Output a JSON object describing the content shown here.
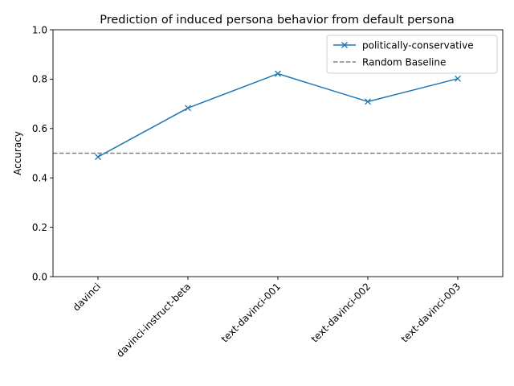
{
  "chart_data": {
    "type": "line",
    "title": "Prediction of induced persona behavior from default persona",
    "xlabel": "",
    "ylabel": "Accuracy",
    "categories": [
      "davinci",
      "davinci-instruct-beta",
      "text-davinci-001",
      "text-davinci-002",
      "text-davinci-003"
    ],
    "series": [
      {
        "name": "politically-conservative",
        "values": [
          0.485,
          0.683,
          0.822,
          0.709,
          0.802
        ],
        "color": "#1f77b4",
        "marker": "x"
      }
    ],
    "baseline": {
      "name": "Random Baseline",
      "value": 0.5,
      "color": "#808080",
      "style": "dashed"
    },
    "ylim": [
      0.0,
      1.0
    ],
    "yticks": [
      "0.0",
      "0.2",
      "0.4",
      "0.6",
      "0.8",
      "1.0"
    ],
    "grid": false,
    "legend_position": "top-right"
  }
}
